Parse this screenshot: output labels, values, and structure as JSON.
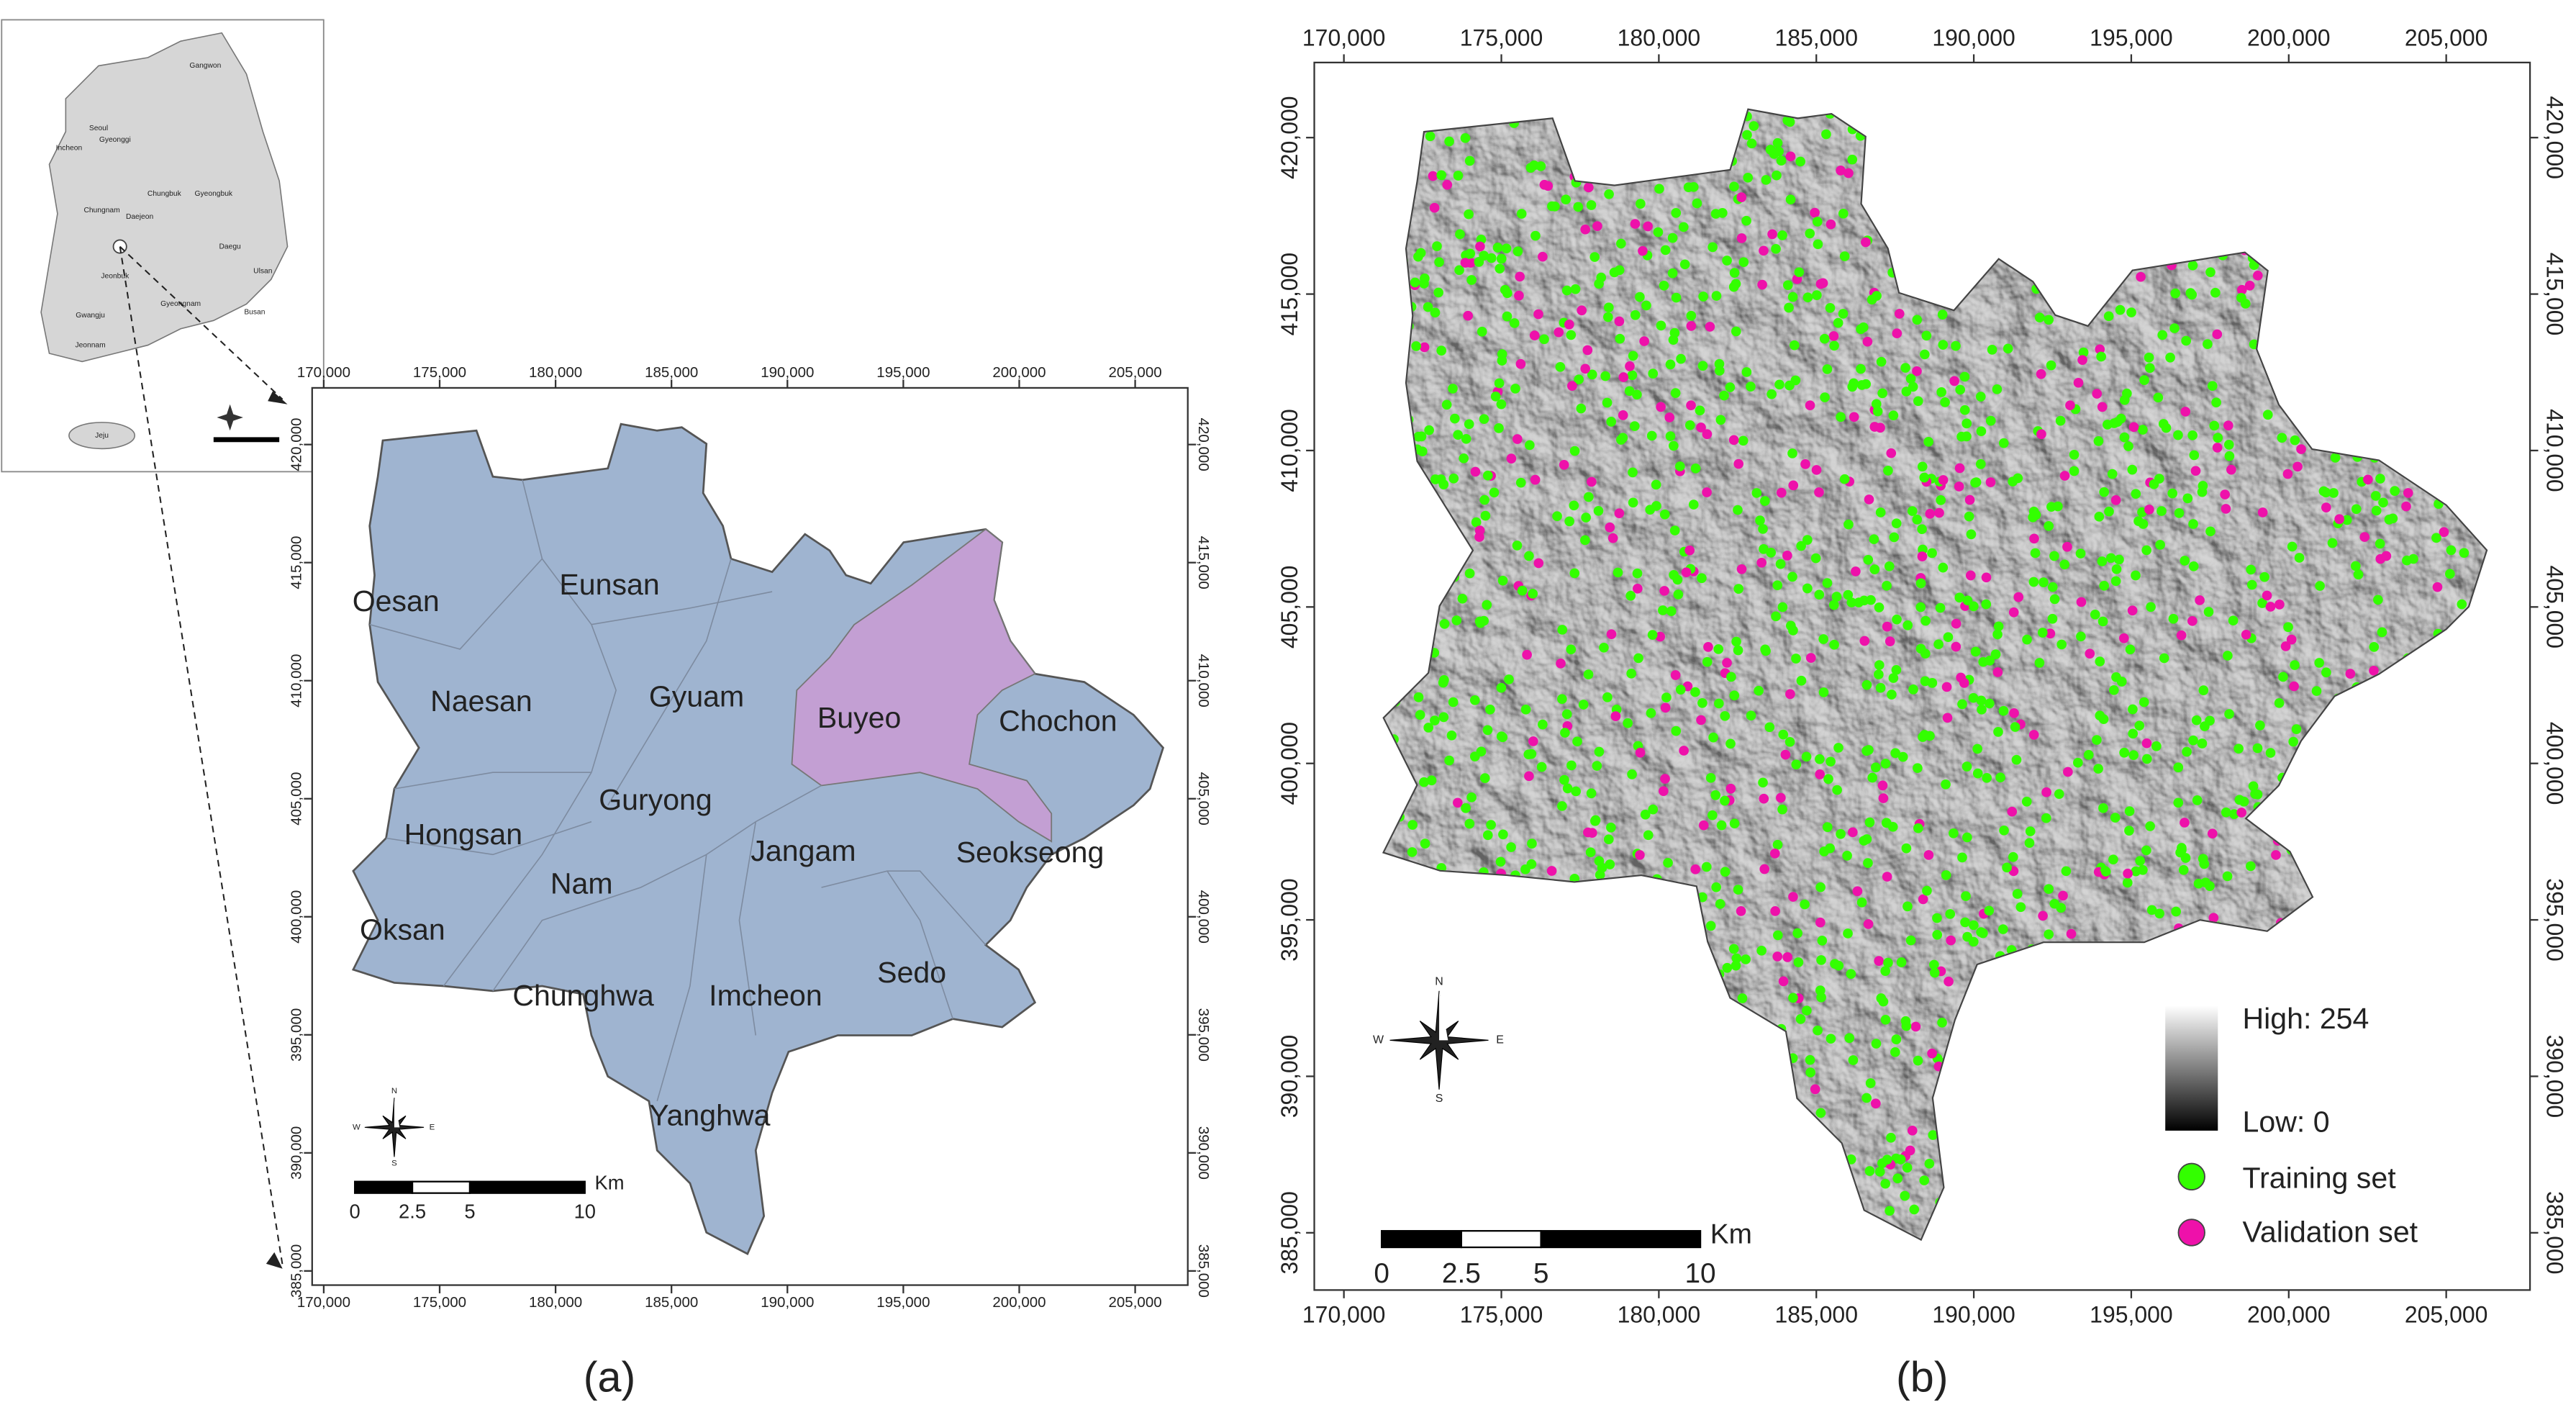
{
  "inset": {
    "labels": [
      "Gangwon",
      "Gyeonggi",
      "Seoul",
      "Incheon",
      "Chungnam",
      "Daejeon",
      "Chungbuk",
      "Gyeongbuk",
      "Daegu",
      "Jeonbuk",
      "Gwangju",
      "Jeonnam",
      "Gyeongnam",
      "Ulsan",
      "Busan",
      "Jeju"
    ]
  },
  "panel_a": {
    "caption": "(a)",
    "xlim": [
      169500,
      207270
    ],
    "ylim": [
      384400,
      422400
    ],
    "xticks": [
      {
        "value": 170000,
        "label": "170,000"
      },
      {
        "value": 175000,
        "label": "175,000"
      },
      {
        "value": 180000,
        "label": "180,000"
      },
      {
        "value": 185000,
        "label": "185,000"
      },
      {
        "value": 190000,
        "label": "190,000"
      },
      {
        "value": 195000,
        "label": "195,000"
      },
      {
        "value": 200000,
        "label": "200,000"
      },
      {
        "value": 205000,
        "label": "205,000"
      }
    ],
    "yticks": [
      {
        "value": 385000,
        "label": "385,000"
      },
      {
        "value": 390000,
        "label": "390,000"
      },
      {
        "value": 395000,
        "label": "395,000"
      },
      {
        "value": 400000,
        "label": "400,000"
      },
      {
        "value": 405000,
        "label": "405,000"
      },
      {
        "value": 410000,
        "label": "410,000"
      },
      {
        "value": 415000,
        "label": "415,000"
      },
      {
        "value": 420000,
        "label": "420,000"
      }
    ],
    "regions": [
      "Oesan",
      "Eunsan",
      "Naesan",
      "Gyuam",
      "Buyeo",
      "Chochon",
      "Guryong",
      "Hongsan",
      "Jangam",
      "Seokseong",
      "Nam",
      "Oksan",
      "Sedo",
      "Chunghwa",
      "Imcheon",
      "Yanghwa"
    ],
    "region_color": "#9fb4d0",
    "highlight_color": "#c39fd3",
    "compass": [
      "N",
      "S",
      "E",
      "W"
    ],
    "scale_bar": {
      "ticks": [
        0,
        2.5,
        5,
        10
      ],
      "max": 10,
      "unit": "Km"
    }
  },
  "panel_b": {
    "caption": "(b)",
    "xlim": [
      169060,
      207660
    ],
    "ylim": [
      383170,
      422400
    ],
    "xticks": [
      {
        "value": 170000,
        "label": "170,000"
      },
      {
        "value": 175000,
        "label": "175,000"
      },
      {
        "value": 180000,
        "label": "180,000"
      },
      {
        "value": 185000,
        "label": "185,000"
      },
      {
        "value": 190000,
        "label": "190,000"
      },
      {
        "value": 195000,
        "label": "195,000"
      },
      {
        "value": 200000,
        "label": "200,000"
      },
      {
        "value": 205000,
        "label": "205,000"
      }
    ],
    "yticks": [
      {
        "value": 385000,
        "label": "385,000"
      },
      {
        "value": 390000,
        "label": "390,000"
      },
      {
        "value": 395000,
        "label": "395,000"
      },
      {
        "value": 400000,
        "label": "400,000"
      },
      {
        "value": 405000,
        "label": "405,000"
      },
      {
        "value": 410000,
        "label": "410,000"
      },
      {
        "value": 415000,
        "label": "415,000"
      },
      {
        "value": 420000,
        "label": "420,000"
      }
    ],
    "compass": [
      "N",
      "S",
      "E",
      "W"
    ],
    "scale_bar": {
      "ticks": [
        0,
        2.5,
        5,
        10
      ],
      "max": 10,
      "unit": "Km"
    },
    "legend": {
      "high": "High: 254",
      "low": "Low: 0",
      "training": "Training set",
      "validation": "Validation set"
    },
    "training_color": "#33ff00",
    "validation_color": "#ee11aa"
  }
}
